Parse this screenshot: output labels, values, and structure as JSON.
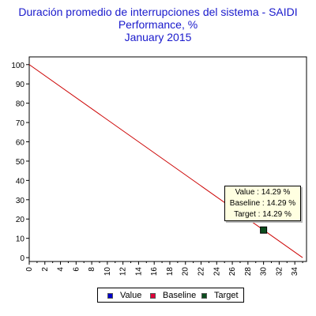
{
  "chart_data": {
    "type": "line",
    "title": [
      "Duración promedio de interrupciones del sistema - SAIDI",
      "Performance, %",
      "January 2015"
    ],
    "xlabel": "",
    "ylabel": "",
    "xlim": [
      0,
      35.5
    ],
    "ylim": [
      -2,
      104
    ],
    "x_ticks": [
      0,
      2,
      4,
      6,
      8,
      10,
      12,
      14,
      16,
      18,
      20,
      22,
      24,
      26,
      28,
      30,
      32,
      34
    ],
    "y_ticks": [
      0,
      10,
      20,
      30,
      40,
      50,
      60,
      70,
      80,
      90,
      100
    ],
    "grid": true,
    "series": [
      {
        "name": "Value",
        "values": [],
        "color": "#0000cc"
      },
      {
        "name": "Baseline",
        "x": [
          0,
          35
        ],
        "values": [
          100,
          0
        ],
        "color": "#cc0000"
      },
      {
        "name": "Target",
        "x": [
          30
        ],
        "values": [
          14.29
        ],
        "color": "#0b4d1e"
      }
    ],
    "tooltip": [
      "Value : 14.29 %",
      "Baseline : 14.29 %",
      "Target : 14.29 %"
    ],
    "legend_position": "bottom"
  },
  "colors": {
    "title": "#1a1acc",
    "grid": "#999999"
  }
}
